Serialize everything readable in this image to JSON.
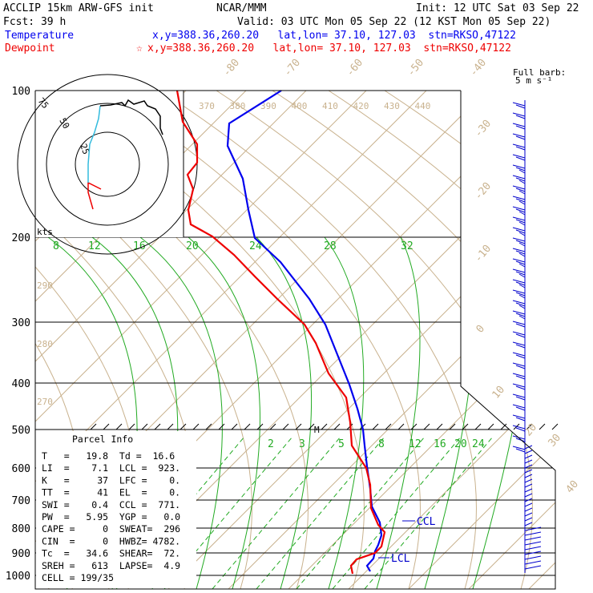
{
  "header": {
    "line1_left": "ACCLIP 15km ARW-GFS init",
    "line1_center": "NCAR/MMM",
    "line1_right": "Init: 12 UTC Sat 03 Sep 22",
    "line2_left": "Fcst:   39 h",
    "line2_right": "Valid: 03 UTC Mon 05 Sep 22 (12 KST Mon 05 Sep 22)",
    "temp_label": "Temperature",
    "temp_info": "x,y=388.36,260.20   lat,lon= 37.10, 127.03  stn=RKSO,47122",
    "dew_label": "Dewpoint",
    "dew_info": "x,y=388.36,260.20   lat,lon= 37.10, 127.03  stn=RKSO,47122",
    "star": "☆",
    "barb_label_1": "Full barb:",
    "barb_label_2": "5 m s⁻¹"
  },
  "colors": {
    "temperature": "#0000ee",
    "dewpoint": "#ee0000",
    "isotherm": "#c9b28e",
    "mixing_ratio": "#22aa22",
    "hodograph_low": "#ee0000",
    "hodograph_mid": "#33bbdd",
    "hodograph_high": "#000000",
    "wind_barb": "#0000cc"
  },
  "chart_data": {
    "type": "line",
    "pressure_levels": [
      "100",
      "200",
      "300",
      "400",
      "500",
      "600",
      "700",
      "800",
      "900",
      "1000"
    ],
    "isotherm_labels": [
      {
        "value": "-80",
        "axis": "top"
      },
      {
        "value": "-70",
        "axis": "top"
      },
      {
        "value": "-60",
        "axis": "top"
      },
      {
        "value": "-50",
        "axis": "top"
      },
      {
        "value": "-40",
        "axis": "top"
      },
      {
        "value": "-30",
        "axis": "right"
      },
      {
        "value": "-20",
        "axis": "right"
      },
      {
        "value": "-10",
        "axis": "right"
      },
      {
        "value": "0",
        "axis": "right"
      },
      {
        "value": "10",
        "axis": "right"
      },
      {
        "value": "20",
        "axis": "right"
      },
      {
        "value": "30",
        "axis": "right"
      },
      {
        "value": "40",
        "axis": "right"
      }
    ],
    "theta_labels_upper": [
      "370",
      "380",
      "390",
      "400",
      "410",
      "420",
      "430",
      "440"
    ],
    "theta_labels_left": [
      "290",
      "280",
      "270"
    ],
    "theta_e_labels": [
      "8",
      "12",
      "16",
      "20",
      "24",
      "28",
      "32"
    ],
    "mixing_ratio_labels": [
      "2",
      "3",
      "5",
      "8",
      "12",
      "16",
      "20",
      "24"
    ],
    "hodograph_rings": [
      "25",
      "50",
      "75"
    ],
    "hodograph_unit": "kts",
    "ccl_label": "CCL",
    "lcl_label": "LCL",
    "marker_m": "M",
    "series": [
      {
        "name": "Temperature",
        "color": "#0000ee",
        "points": [
          [
            351,
            113
          ],
          [
            286,
            154
          ],
          [
            284,
            182
          ],
          [
            303,
            223
          ],
          [
            310,
            262
          ],
          [
            318,
            297
          ],
          [
            350,
            327
          ],
          [
            386,
            373
          ],
          [
            406,
            405
          ],
          [
            422,
            445
          ],
          [
            436,
            480
          ],
          [
            446,
            510
          ],
          [
            453,
            536
          ],
          [
            455,
            556
          ],
          [
            458,
            582
          ],
          [
            462,
            610
          ],
          [
            464,
            632
          ],
          [
            474,
            652
          ],
          [
            476,
            668
          ],
          [
            472,
            680
          ],
          [
            468,
            688
          ],
          [
            466,
            697
          ],
          [
            458,
            706
          ],
          [
            462,
            713
          ]
        ]
      },
      {
        "name": "Dewpoint",
        "color": "#ee0000",
        "points": [
          [
            221,
            113
          ],
          [
            228,
            152
          ],
          [
            246,
            180
          ],
          [
            246,
            203
          ],
          [
            234,
            218
          ],
          [
            241,
            236
          ],
          [
            235,
            262
          ],
          [
            238,
            280
          ],
          [
            265,
            295
          ],
          [
            292,
            318
          ],
          [
            318,
            345
          ],
          [
            346,
            373
          ],
          [
            380,
            405
          ],
          [
            394,
            428
          ],
          [
            410,
            466
          ],
          [
            432,
            496
          ],
          [
            437,
            527
          ],
          [
            439,
            556
          ],
          [
            457,
            584
          ],
          [
            462,
            605
          ],
          [
            463,
            634
          ],
          [
            472,
            655
          ],
          [
            480,
            664
          ],
          [
            476,
            682
          ],
          [
            468,
            690
          ],
          [
            445,
            698
          ],
          [
            438,
            706
          ],
          [
            440,
            716
          ]
        ]
      }
    ]
  },
  "parcel_info": {
    "title": "Parcel Info",
    "rows": [
      "T   =   19.8  Td =  16.6",
      "LI  =    7.1  LCL =  923.",
      "K   =     37  LFC =    0.",
      "TT  =     41  EL  =    0.",
      "SWI =    0.4  CCL =  771.",
      "PW  =   5.95  YGP =   0.0",
      "CAPE =     0  SWEAT=  296",
      "CIN  =     0  HWBZ= 4782.",
      "Tc  =   34.6  SHEAR=  72.",
      "SREH =   613  LAPSE=  4.9",
      "CELL = 199/35"
    ]
  }
}
